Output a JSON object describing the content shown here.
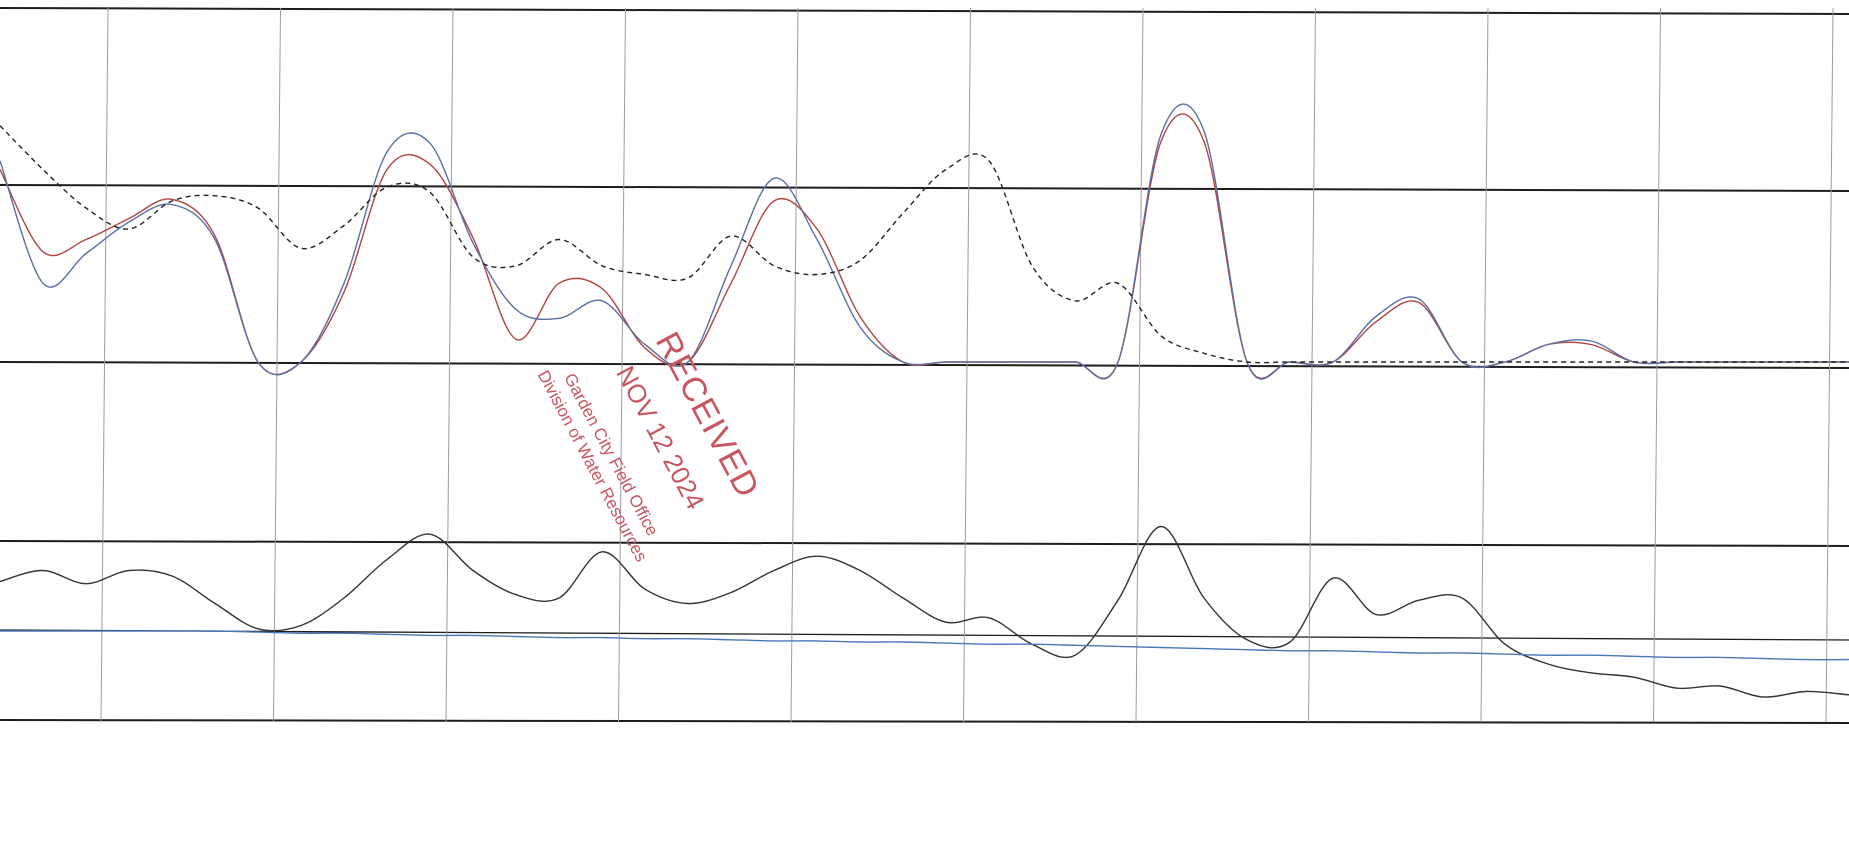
{
  "chart_data": [
    {
      "type": "line",
      "title": "",
      "x": [
        0,
        0.5,
        1,
        1.5,
        2,
        2.5,
        3,
        3.5,
        4,
        4.5,
        5,
        5.5,
        6,
        6.5,
        7,
        7.5,
        8,
        8.5,
        9,
        9.5,
        10,
        10.5,
        11,
        11.5,
        12,
        12.5,
        13,
        13.5,
        14,
        14.5,
        15,
        15.5,
        16,
        16.5,
        17,
        17.5,
        18,
        18.5,
        19,
        19.5,
        20,
        20.5,
        21,
        21.5
      ],
      "series": [
        {
          "color": "#b0453e",
          "values": [
            1.1,
            0.63,
            0.7,
            0.82,
            0.93,
            0.72,
            0,
            0,
            0.4,
            1.1,
            1.13,
            0.71,
            0.13,
            0.45,
            0.42,
            0.08,
            0,
            0.45,
            0.92,
            0.76,
            0.26,
            0,
            0,
            0,
            0,
            0,
            0,
            1.26,
            1.26,
            0,
            0,
            0,
            0.23,
            0.34,
            0,
            0,
            0.1,
            0.1,
            0,
            0,
            0,
            0,
            0,
            0
          ]
        },
        {
          "color": "#5a6fa8",
          "values": [
            1.15,
            0.45,
            0.62,
            0.8,
            0.9,
            0.7,
            0,
            0,
            0.45,
            1.2,
            1.25,
            0.68,
            0.3,
            0.25,
            0.35,
            0.1,
            0,
            0.55,
            1.05,
            0.7,
            0.2,
            0,
            0,
            0,
            0,
            0,
            0,
            1.3,
            1.32,
            0,
            0,
            0,
            0.26,
            0.36,
            0,
            0,
            0.1,
            0.12,
            0,
            0,
            0,
            0,
            0,
            0
          ]
        },
        {
          "color": "#222222",
          "values": [
            1.35,
            1.1,
            0.88,
            0.76,
            0.92,
            0.95,
            0.88,
            0.65,
            0.78,
            1.0,
            0.97,
            0.6,
            0.55,
            0.7,
            0.55,
            0.5,
            0.48,
            0.72,
            0.55,
            0.5,
            0.58,
            0.85,
            1.1,
            1.15,
            0.55,
            0.35,
            0.45,
            0.15,
            0.05,
            0,
            0,
            0,
            0,
            0,
            0,
            0,
            0,
            0,
            0,
            0,
            0,
            0,
            0,
            0
          ]
        }
      ]
    },
    {
      "type": "line",
      "title": "",
      "x": [
        0,
        0.5,
        1,
        1.5,
        2,
        2.5,
        3,
        3.5,
        4,
        4.5,
        5,
        5.5,
        6,
        6.5,
        7,
        7.5,
        8,
        8.5,
        9,
        9.5,
        10,
        10.5,
        11,
        11.5,
        12,
        12.5,
        13,
        13.5,
        14,
        14.5,
        15,
        15.5,
        16,
        16.5,
        17,
        17.5,
        18,
        18.5,
        19,
        19.5,
        20,
        20.5,
        21,
        21.5
      ],
      "series": [
        {
          "color": "#333333",
          "values": [
            0.45,
            0.55,
            0.43,
            0.55,
            0.5,
            0.25,
            0.02,
            0.05,
            0.3,
            0.65,
            0.88,
            0.55,
            0.33,
            0.3,
            0.72,
            0.38,
            0.25,
            0.35,
            0.55,
            0.68,
            0.55,
            0.3,
            0.08,
            0.12,
            -0.12,
            -0.22,
            0.28,
            0.95,
            0.3,
            -0.08,
            -0.1,
            0.48,
            0.15,
            0.28,
            0.3,
            -0.12,
            -0.3,
            -0.38,
            -0.42,
            -0.52,
            -0.5,
            -0.6,
            -0.55,
            -0.58
          ]
        },
        {
          "color": "#4a78b8",
          "values": [
            0,
            0,
            0,
            0,
            0,
            0,
            -0.01,
            -0.02,
            -0.02,
            -0.03,
            -0.04,
            -0.04,
            -0.05,
            -0.06,
            -0.06,
            -0.07,
            -0.07,
            -0.08,
            -0.09,
            -0.09,
            -0.1,
            -0.1,
            -0.11,
            -0.12,
            -0.12,
            -0.13,
            -0.14,
            -0.15,
            -0.16,
            -0.17,
            -0.18,
            -0.18,
            -0.19,
            -0.2,
            -0.2,
            -0.21,
            -0.22,
            -0.22,
            -0.23,
            -0.24,
            -0.24,
            -0.25,
            -0.26,
            -0.26
          ]
        }
      ]
    }
  ],
  "stamp": {
    "line1": "RECEIVED",
    "line2": "NOV 12 2024",
    "line3": "Garden City Field Office",
    "line4": "Division of Water Resources"
  }
}
